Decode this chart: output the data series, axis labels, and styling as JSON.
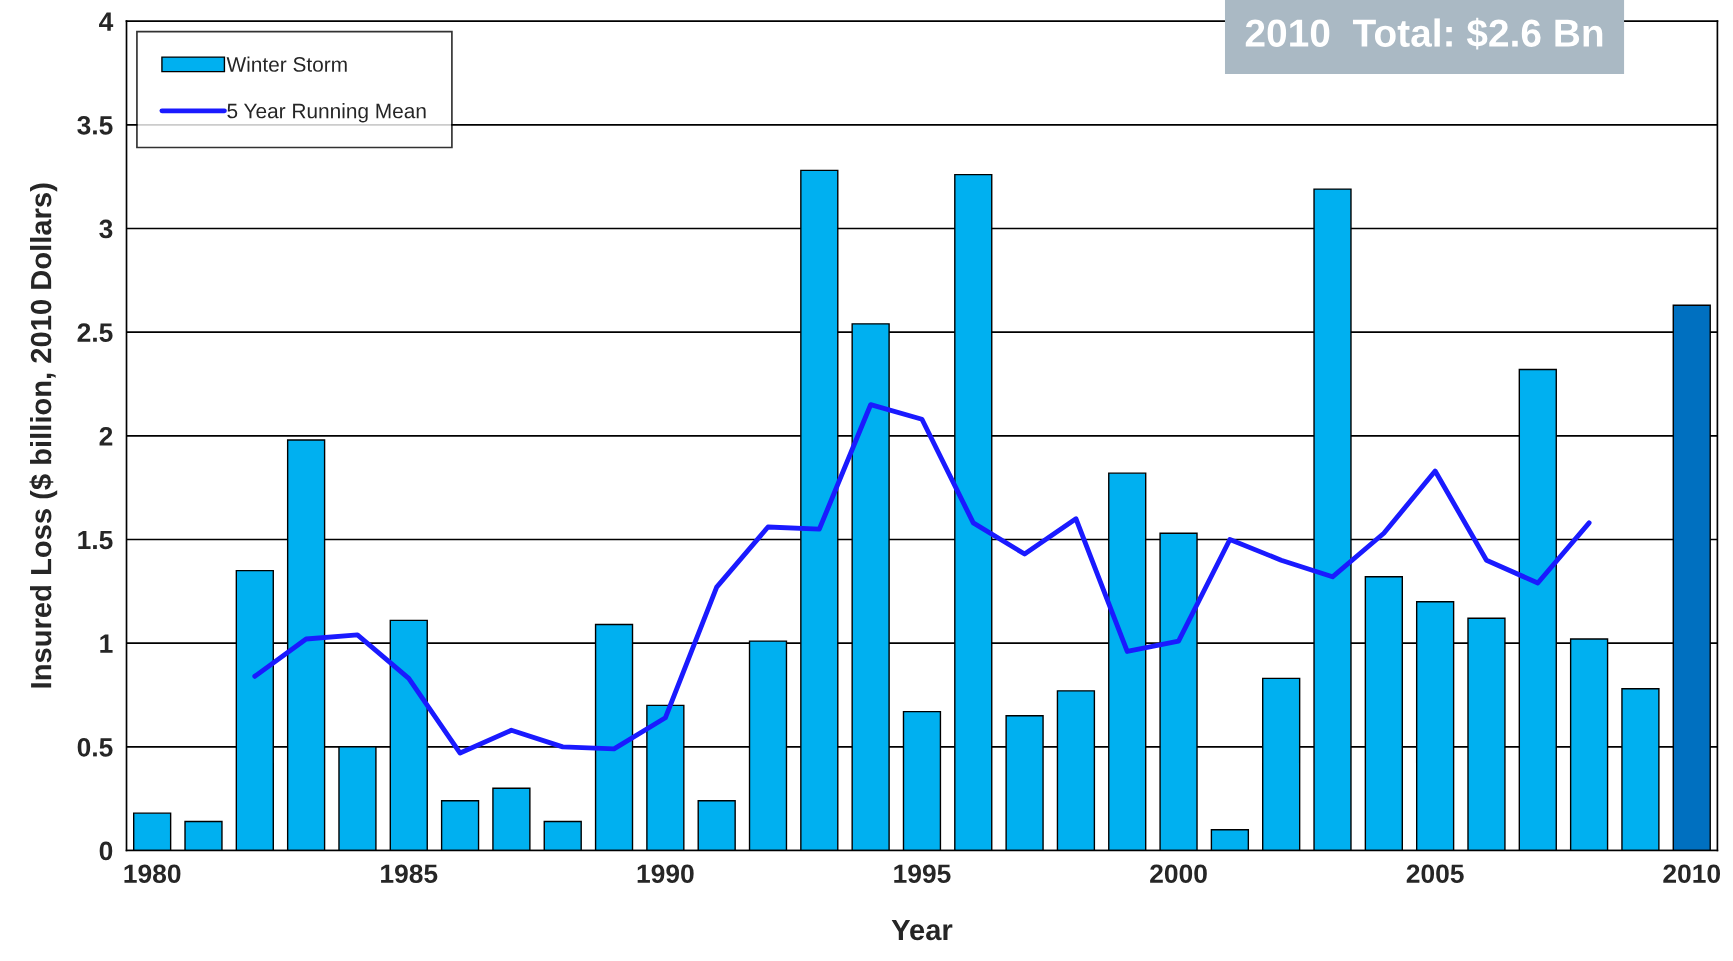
{
  "chart_data": {
    "type": "bar",
    "xlabel": "Year",
    "ylabel": "Insured Loss ($ billion, 2010 Dollars)",
    "annotations": [
      "2010  Total: $2.6 Bn"
    ],
    "x": [
      1980,
      1981,
      1982,
      1983,
      1984,
      1985,
      1986,
      1987,
      1988,
      1989,
      1990,
      1991,
      1992,
      1993,
      1994,
      1995,
      1996,
      1997,
      1998,
      1999,
      2000,
      2001,
      2002,
      2003,
      2004,
      2005,
      2006,
      2007,
      2008,
      2009,
      2010
    ],
    "series": [
      {
        "name": "Winter Storm",
        "color": "#00b0f0",
        "colors": [
          "#00b0f0",
          "#00b0f0",
          "#00b0f0",
          "#00b0f0",
          "#00b0f0",
          "#00b0f0",
          "#00b0f0",
          "#00b0f0",
          "#00b0f0",
          "#00b0f0",
          "#00b0f0",
          "#00b0f0",
          "#00b0f0",
          "#00b0f0",
          "#00b0f0",
          "#00b0f0",
          "#00b0f0",
          "#00b0f0",
          "#00b0f0",
          "#00b0f0",
          "#00b0f0",
          "#00b0f0",
          "#00b0f0",
          "#00b0f0",
          "#00b0f0",
          "#00b0f0",
          "#00b0f0",
          "#00b0f0",
          "#00b0f0",
          "#00b0f0",
          "#0070c0"
        ],
        "values": [
          0.18,
          0.14,
          1.35,
          1.98,
          0.5,
          1.11,
          0.24,
          0.3,
          0.14,
          1.09,
          0.7,
          0.24,
          1.01,
          3.28,
          2.54,
          0.67,
          3.26,
          0.65,
          0.77,
          1.82,
          1.53,
          0.1,
          0.83,
          3.19,
          1.32,
          1.2,
          1.12,
          2.32,
          1.02,
          0.78,
          2.63
        ]
      },
      {
        "name": "5 Year Running Mean",
        "type": "line",
        "color": "#1a1aff",
        "x": [
          1982,
          1983,
          1984,
          1985,
          1986,
          1987,
          1988,
          1989,
          1990,
          1991,
          1992,
          1993,
          1994,
          1995,
          1996,
          1997,
          1998,
          1999,
          2000,
          2001,
          2002,
          2003,
          2004,
          2005,
          2006,
          2007,
          2008
        ],
        "values": [
          0.84,
          1.02,
          1.04,
          0.83,
          0.47,
          0.58,
          0.5,
          0.49,
          0.64,
          1.27,
          1.56,
          1.55,
          2.15,
          2.08,
          1.58,
          1.43,
          1.6,
          0.96,
          1.01,
          1.5,
          1.4,
          1.32,
          1.53,
          1.83,
          1.4,
          1.29,
          1.58
        ]
      }
    ],
    "xlim": [
      1979.5,
      2010.5
    ],
    "xticks": [
      1980,
      1985,
      1990,
      1995,
      2000,
      2005,
      2010
    ],
    "ylim": [
      0,
      4
    ],
    "yticks": [
      0,
      0.5,
      1,
      1.5,
      2,
      2.5,
      3,
      3.5,
      4
    ],
    "grid": "y",
    "legend": "top left",
    "marker": "none",
    "line_style": "solid"
  }
}
